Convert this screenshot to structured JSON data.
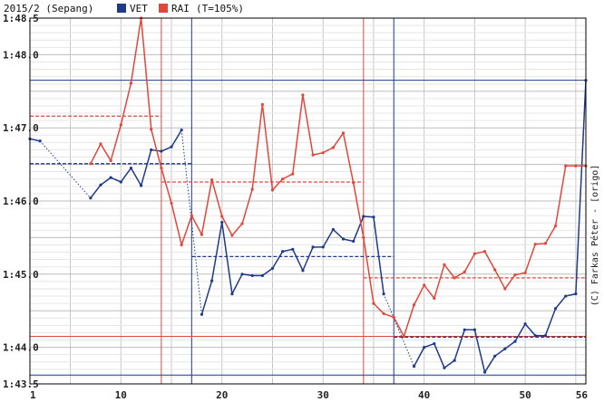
{
  "chart_data": {
    "type": "line",
    "title": "2015/2 (Sepang)",
    "credit": "(C) Farkas Péter - [origo]",
    "x_ticks": [
      1,
      10,
      20,
      30,
      40,
      50,
      56
    ],
    "y_ticks": [
      "1:43.5",
      "1:44.0",
      "1:45.0",
      "1:46.0",
      "1:47.0",
      "1:48.0",
      "1:48.5"
    ],
    "xlim": [
      1,
      56
    ],
    "ylim": [
      103.5,
      108.5
    ],
    "grid": true,
    "legend_position": "top",
    "series": [
      {
        "name": "VET",
        "color": "#1f3a8a",
        "x": [
          1,
          2,
          7,
          8,
          9,
          10,
          11,
          12,
          13,
          14,
          15,
          16,
          18,
          19,
          20,
          21,
          22,
          23,
          24,
          25,
          26,
          27,
          28,
          29,
          30,
          31,
          32,
          33,
          34,
          35,
          36,
          39,
          40,
          41,
          42,
          43,
          44,
          45,
          46,
          47,
          48,
          49,
          50,
          51,
          52,
          53,
          54,
          55,
          56
        ],
        "values": [
          106.85,
          106.82,
          106.04,
          106.22,
          106.32,
          106.26,
          106.45,
          106.21,
          106.7,
          106.68,
          106.74,
          106.97,
          104.45,
          104.91,
          105.71,
          104.73,
          105.0,
          104.98,
          104.98,
          105.08,
          105.31,
          105.34,
          105.05,
          105.37,
          105.37,
          105.61,
          105.48,
          105.45,
          105.79,
          105.78,
          104.73,
          103.74,
          104.0,
          104.05,
          103.72,
          103.82,
          104.24,
          104.24,
          103.66,
          103.88,
          103.98,
          104.08,
          104.32,
          104.16,
          104.16,
          104.53,
          104.7,
          104.73,
          107.65
        ]
      },
      {
        "name": "RAI",
        "color": "#e0483c",
        "x": [
          7,
          8,
          9,
          10,
          11,
          12,
          13,
          14,
          15,
          16,
          17,
          18,
          19,
          20,
          21,
          22,
          23,
          24,
          25,
          26,
          27,
          28,
          29,
          30,
          31,
          32,
          33,
          34,
          35,
          36,
          37,
          38,
          39,
          40,
          41,
          42,
          43,
          44,
          45,
          46,
          47,
          48,
          49,
          50,
          51,
          52,
          53,
          54,
          55,
          56
        ],
        "values": [
          106.51,
          106.78,
          106.55,
          107.04,
          107.61,
          108.5,
          106.98,
          106.45,
          105.97,
          105.4,
          105.8,
          105.54,
          106.29,
          105.79,
          105.53,
          105.69,
          106.16,
          107.32,
          106.15,
          106.3,
          106.37,
          107.45,
          106.63,
          106.66,
          106.73,
          106.93,
          106.25,
          105.5,
          104.6,
          104.46,
          104.41,
          104.15,
          104.58,
          104.85,
          104.67,
          105.13,
          104.95,
          105.03,
          105.28,
          105.31,
          105.06,
          104.8,
          104.99,
          105.02,
          105.41,
          105.42,
          105.66,
          106.48,
          106.48,
          106.48
        ]
      }
    ],
    "stint_averages": [
      {
        "series": "VET",
        "from": 1,
        "to": 17,
        "value": 106.51
      },
      {
        "series": "VET",
        "from": 17,
        "to": 37,
        "value": 105.24
      },
      {
        "series": "VET",
        "from": 37,
        "to": 56,
        "value": 104.14
      },
      {
        "series": "RAI",
        "from": 1,
        "to": 14,
        "value": 107.16
      },
      {
        "series": "RAI",
        "from": 14,
        "to": 34,
        "value": 106.26
      },
      {
        "series": "RAI",
        "from": 34,
        "to": 56,
        "value": 104.95
      }
    ],
    "pit_laps": [
      {
        "series": "RAI",
        "lap": 14
      },
      {
        "series": "VET",
        "lap": 17
      },
      {
        "series": "RAI",
        "lap": 34
      },
      {
        "series": "VET",
        "lap": 37
      }
    ],
    "reference_lines": [
      {
        "series": "VET",
        "value": 107.65
      },
      {
        "series": "VET",
        "value": 103.62
      },
      {
        "series": "RAI",
        "value": 108.5
      },
      {
        "series": "RAI",
        "value": 104.15
      }
    ]
  }
}
